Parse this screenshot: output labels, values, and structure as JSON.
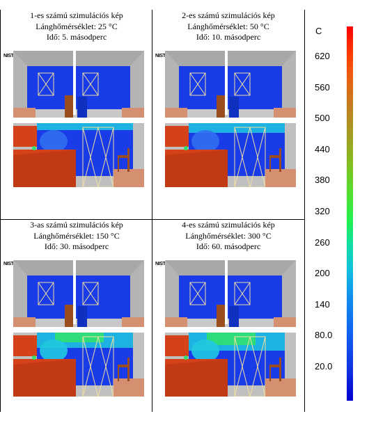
{
  "panels": [
    {
      "title": "1-es számú szimulációs kép",
      "flame": "Lánghőmérséklet: 25 °C",
      "time": "Idő: 5. másodperc",
      "level": 1
    },
    {
      "title": "2-es számú szimulációs kép",
      "flame": "Lánghőmérséklet: 50 °C",
      "time": "Idő: 10. másodperc",
      "level": 2
    },
    {
      "title": "3-as számú szimulációs kép",
      "flame": "Lánghőmérséklet: 150 °C",
      "time": "Idő: 30. másodperc",
      "level": 3
    },
    {
      "title": "4-es számú szimulációs kép",
      "flame": "Lánghőmérséklet: 300 °C",
      "time": "Idő: 60. másodperc",
      "level": 4
    }
  ],
  "logo_text": "NIST",
  "legend": {
    "unit": "C",
    "ticks": [
      "620",
      "560",
      "500",
      "440",
      "380",
      "320",
      "260",
      "200",
      "140",
      "80.0",
      "20.0"
    ],
    "colors": {
      "top": "#ff0000",
      "bottom": "#0000d0"
    }
  },
  "scene_colors": {
    "wall_blue": "#1a3be8",
    "ceiling_gray": "#a8a8a8",
    "furniture_orange": "#d5421a",
    "floor_tan": "#d49070",
    "door_brown": "#9a4e1e",
    "hot_green": "#30e070",
    "hot_cyan": "#20c8e0"
  }
}
